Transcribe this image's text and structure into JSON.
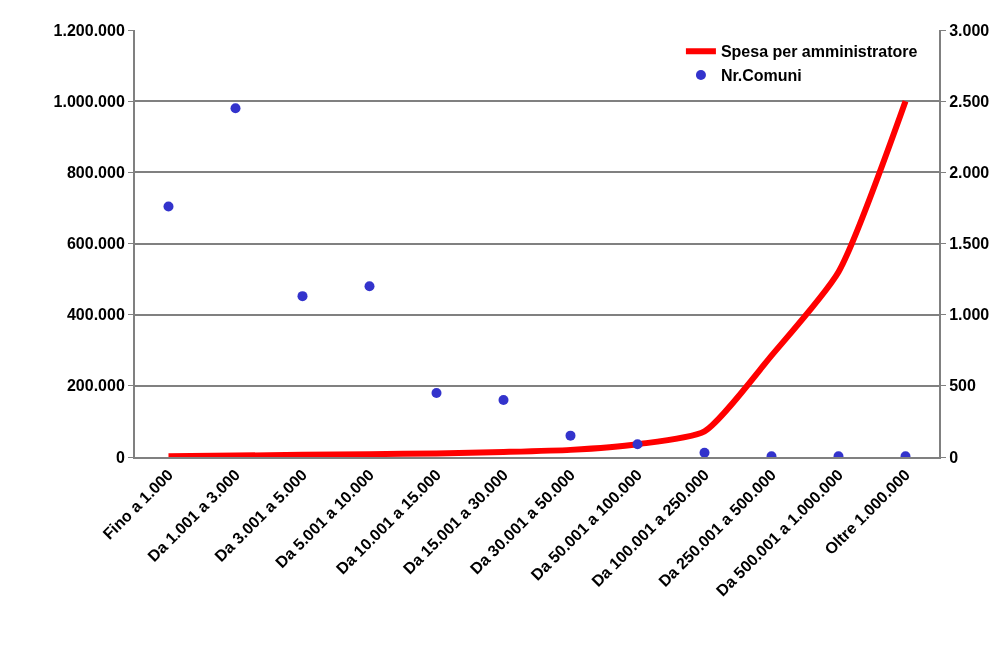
{
  "chart_data": {
    "type": "line",
    "categories": [
      "Fino a 1.000",
      "Da 1.001 a 3.000",
      "Da 3.001 a 5.000",
      "Da 5.001 a 10.000",
      "Da 10.001 a 15.000",
      "Da 15.001 a 30.000",
      "Da 30.001 a 50.000",
      "Da 50.001 a 100.000",
      "Da 100.001 a 250.000",
      "Da 250.001 a 500.000",
      "Da 500.001 a 1.000.000",
      "Oltre 1.000.000"
    ],
    "series": [
      {
        "name": "Spesa per amministratore",
        "color": "#ff0000",
        "marker": "none",
        "line_style": "solid",
        "values": [
          2000,
          4000,
          6000,
          8000,
          10000,
          14000,
          20000,
          36000,
          72000,
          285000,
          520000,
          1000000
        ]
      },
      {
        "name": "Nr.Comuni",
        "type": "scatter",
        "axis": "y2",
        "color": "#3333cc",
        "marker": "circle",
        "values": [
          1760,
          2450,
          1130,
          1200,
          450,
          400,
          150,
          90,
          30,
          5,
          5,
          5
        ]
      }
    ],
    "ylim": [
      0,
      1200000
    ],
    "yticks": [
      {
        "value": 0,
        "label": "0"
      },
      {
        "value": 200000,
        "label": "200.000"
      },
      {
        "value": 400000,
        "label": "400.000"
      },
      {
        "value": 600000,
        "label": "600.000"
      },
      {
        "value": 800000,
        "label": "800.000"
      },
      {
        "value": 1000000,
        "label": "1.000.000"
      },
      {
        "value": 1200000,
        "label": "1.200.000"
      }
    ],
    "y2lim": [
      0,
      3000
    ],
    "y2ticks": [
      {
        "value": 0,
        "label": "0"
      },
      {
        "value": 500,
        "label": "500"
      },
      {
        "value": 1000,
        "label": "1.000"
      },
      {
        "value": 1500,
        "label": "1.500"
      },
      {
        "value": 2000,
        "label": "2.000"
      },
      {
        "value": 2500,
        "label": "2.500"
      },
      {
        "value": 3000,
        "label": "3.000"
      }
    ],
    "grid": "y",
    "legend": "top right"
  }
}
